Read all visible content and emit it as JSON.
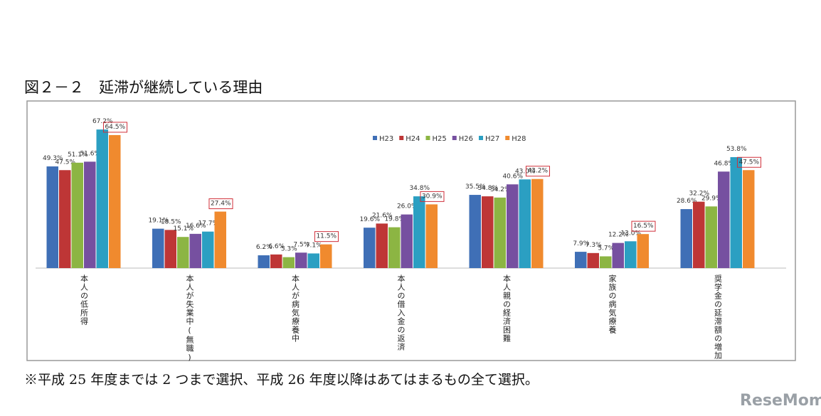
{
  "title": "図２－２　延滞が継続している理由",
  "footnote": "※平成 25 年度までは 2 つまで選択、平成 26 年度以降はあてはまるもの全て選択。",
  "watermark": "ReseMom",
  "chart_data": {
    "type": "bar",
    "categories": [
      "本人の低所得",
      "本人が失業中(無職)",
      "本人が病気療養中",
      "本人の借入金の返済",
      "本人親の経済困難",
      "家族の病気療養",
      "奨学金の延滞額の増加"
    ],
    "ylim": [
      0,
      70
    ],
    "series": [
      {
        "name": "H23",
        "color": "#3f6fb6",
        "values": [
          49.3,
          19.1,
          6.2,
          19.6,
          35.5,
          7.9,
          28.6
        ],
        "value_labels": [
          "49.3%",
          "19.1%",
          "6.2%",
          "19.6%",
          "35.5%",
          "7.9%",
          "28.6%"
        ]
      },
      {
        "name": "H24",
        "color": "#be3636",
        "values": [
          47.5,
          18.5,
          6.6,
          21.6,
          34.8,
          7.3,
          32.2
        ],
        "value_labels": [
          "47.5%",
          "18.5%",
          "6.6%",
          "21.6%",
          "34.8%",
          "7.3%",
          "32.2%"
        ]
      },
      {
        "name": "H25",
        "color": "#8cb543",
        "values": [
          51.1,
          15.1,
          5.3,
          19.8,
          34.2,
          5.7,
          29.9
        ],
        "value_labels": [
          "51.1%",
          "15.1%",
          "5.3%",
          "19.8%",
          "34.2%",
          "5.7%",
          "29.9%"
        ]
      },
      {
        "name": "H26",
        "color": "#7650a0",
        "values": [
          51.6,
          16.6,
          7.5,
          26.0,
          40.6,
          12.2,
          46.8
        ],
        "value_labels": [
          "51.6%",
          "16.6%",
          "7.5%",
          "26.0%",
          "40.6%",
          "12.2%",
          "46.8%"
        ]
      },
      {
        "name": "H27",
        "color": "#2b9fc2",
        "values": [
          67.2,
          17.7,
          7.1,
          34.8,
          43.0,
          13.0,
          53.8
        ],
        "value_labels": [
          "67.2%",
          "17.7%",
          "7.1%",
          "34.8%",
          "43.0%",
          "13.0%",
          "53.8%"
        ]
      },
      {
        "name": "H28",
        "color": "#f08a2e",
        "label_box_color": "#d0303a",
        "values": [
          64.5,
          27.4,
          11.5,
          30.9,
          43.2,
          16.5,
          47.5
        ],
        "value_labels": [
          "64.5%",
          "27.4%",
          "11.5%",
          "30.9%",
          "43.2%",
          "16.5%",
          "47.5%"
        ]
      }
    ]
  }
}
